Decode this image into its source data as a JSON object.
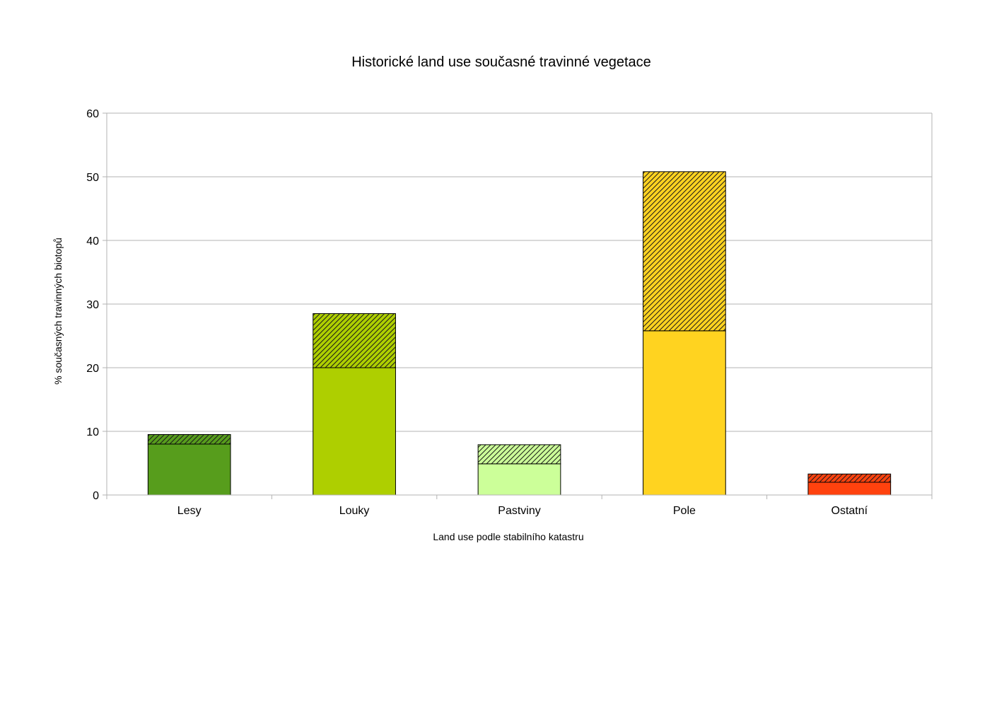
{
  "chart_data": {
    "type": "bar",
    "stacked": true,
    "title": "Historické land use současné travinné vegetace",
    "xlabel": "Land use podle stabilního katastru",
    "ylabel": "% současných travinných biotopů",
    "categories": [
      "Lesy",
      "Louky",
      "Pastviny",
      "Pole",
      "Ostatní"
    ],
    "ylim": [
      0,
      60
    ],
    "yticks": [
      0,
      10,
      20,
      30,
      40,
      50,
      60
    ],
    "grid": true,
    "legend": "none",
    "series": [
      {
        "values": [
          8.0,
          20.0,
          4.9,
          25.8,
          2.0
        ],
        "fill": "solid"
      },
      {
        "values": [
          1.5,
          8.5,
          3.0,
          25.0,
          1.3
        ],
        "fill": "hatched"
      }
    ],
    "colors": [
      "#579d1c",
      "#aecf00",
      "#ccff99",
      "#ffd320",
      "#ff420e"
    ]
  }
}
